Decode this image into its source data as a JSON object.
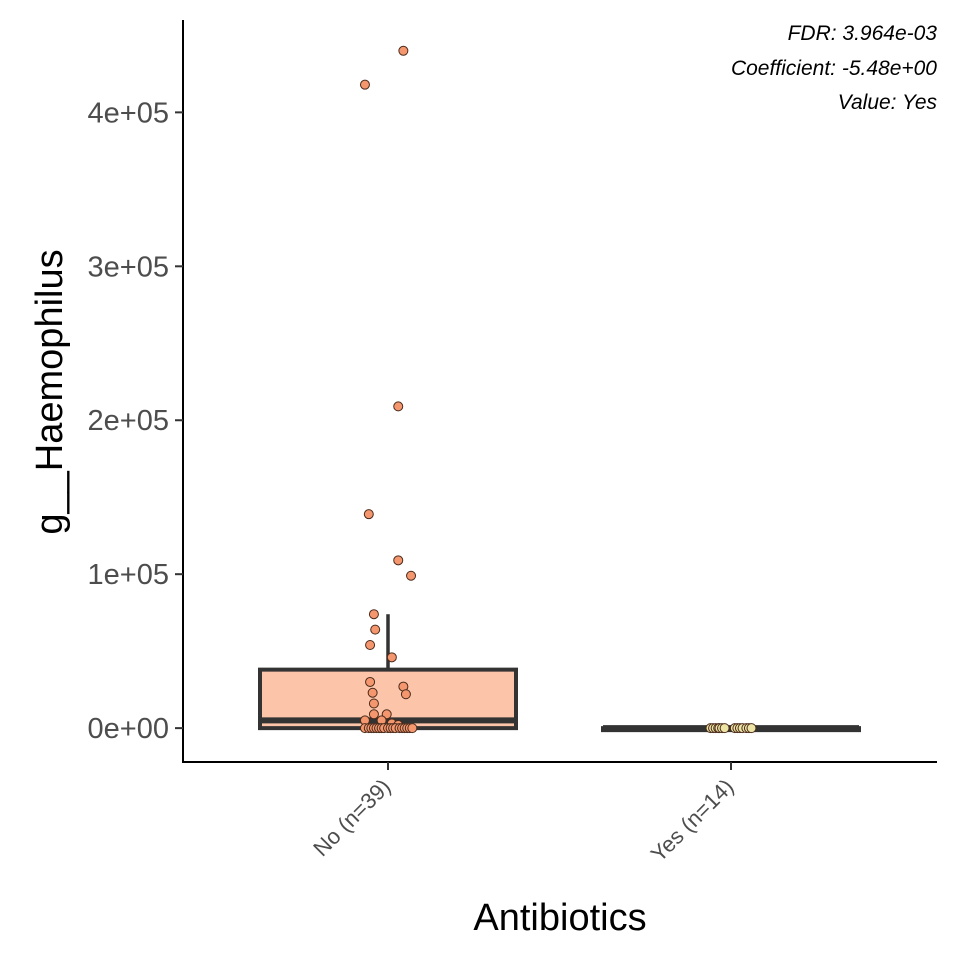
{
  "chart_data": {
    "type": "box",
    "xlabel": "Antibiotics",
    "ylabel": "g__Haemophilus",
    "ylim": [
      -22000,
      460000
    ],
    "yticks": [
      0,
      100000,
      200000,
      300000,
      400000
    ],
    "ytick_labels": [
      "0e+00",
      "1e+05",
      "2e+05",
      "3e+05",
      "4e+05"
    ],
    "categories": [
      "No (n=39)",
      "Yes (n=14)"
    ],
    "annotations": [
      "FDR: 3.964e-03",
      "Coefficient: -5.48e+00",
      "Value: Yes"
    ],
    "legend": "none",
    "grid": false,
    "groups": [
      {
        "category": "No (n=39)",
        "fill": "#fcc5a9",
        "point_color": "#f4976f",
        "box": {
          "whisker_low": 0,
          "q1": 0,
          "median": 5000,
          "q3": 38000,
          "whisker_high": 74000
        },
        "points": [
          [
            0.12,
            440000
          ],
          [
            -0.18,
            418000
          ],
          [
            0.08,
            209000
          ],
          [
            -0.15,
            139000
          ],
          [
            0.08,
            109000
          ],
          [
            0.18,
            99000
          ],
          [
            -0.11,
            74000
          ],
          [
            -0.1,
            64000
          ],
          [
            -0.14,
            54000
          ],
          [
            0.03,
            46000
          ],
          [
            -0.14,
            30000
          ],
          [
            0.12,
            27000
          ],
          [
            -0.12,
            23000
          ],
          [
            0.14,
            22000
          ],
          [
            -0.11,
            16000
          ],
          [
            -0.11,
            9000
          ],
          [
            -0.01,
            9000
          ],
          [
            -0.18,
            5000
          ],
          [
            -0.05,
            5000
          ],
          [
            0.03,
            3000
          ],
          [
            0.08,
            2000
          ],
          [
            -0.18,
            0
          ],
          [
            -0.15,
            0
          ],
          [
            -0.13,
            0
          ],
          [
            -0.11,
            0
          ],
          [
            -0.09,
            0
          ],
          [
            -0.07,
            0
          ],
          [
            -0.05,
            0
          ],
          [
            -0.03,
            0
          ],
          [
            0.0,
            0
          ],
          [
            0.02,
            0
          ],
          [
            0.04,
            0
          ],
          [
            0.06,
            0
          ],
          [
            0.09,
            0
          ],
          [
            0.11,
            0
          ],
          [
            0.13,
            0
          ],
          [
            0.15,
            0
          ],
          [
            0.17,
            0
          ],
          [
            0.19,
            0
          ]
        ]
      },
      {
        "category": "Yes (n=14)",
        "fill": "#ffffff",
        "point_color": "#ece4a4",
        "box": {
          "whisker_low": 0,
          "q1": 0,
          "median": 0,
          "q3": 0,
          "whisker_high": 0
        },
        "points": [
          [
            -0.16,
            0
          ],
          [
            -0.14,
            0
          ],
          [
            -0.12,
            0
          ],
          [
            -0.1,
            0
          ],
          [
            -0.09,
            0
          ],
          [
            -0.07,
            0
          ],
          [
            -0.05,
            0
          ],
          [
            0.03,
            0
          ],
          [
            0.05,
            0
          ],
          [
            0.07,
            0
          ],
          [
            0.09,
            0
          ],
          [
            0.12,
            0
          ],
          [
            0.14,
            0
          ],
          [
            0.16,
            0
          ]
        ]
      }
    ]
  }
}
